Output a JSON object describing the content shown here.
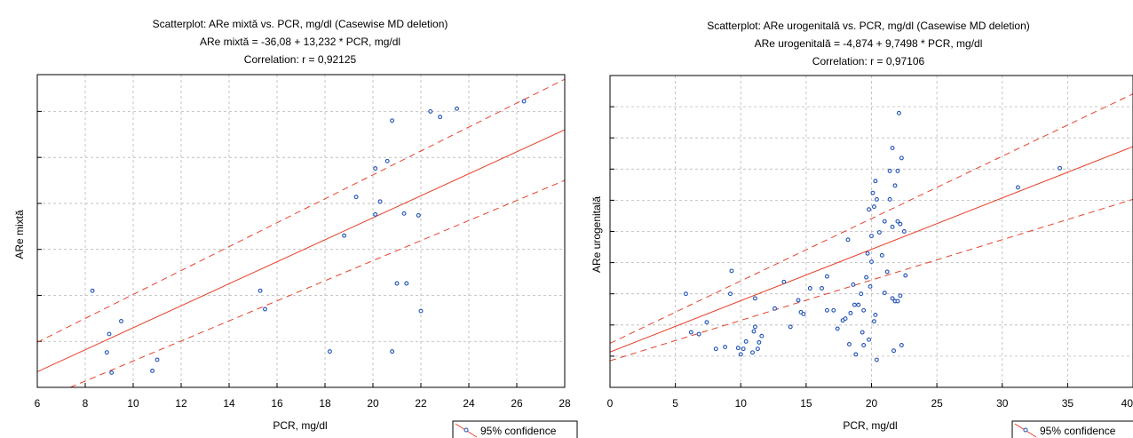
{
  "colors": {
    "point_stroke": "#1f4fb4",
    "fit_line": "#e8412c",
    "grid": "#b8b8b8",
    "frame": "#000000",
    "legend_marker": "#1f4fb4"
  },
  "chart_data": [
    {
      "type": "scatter",
      "title": "Scatterplot: ARe mixtă vs. PCR, mg/dl (Casewise MD deletion)",
      "subtitle": "ARe mixtă = -36,08 + 13,232 * PCR, mg/dl",
      "correlation": "Correlation: r = 0,92125",
      "xlabel": "PCR, mg/dl",
      "ylabel": "ARe mixtă",
      "xlim": [
        6,
        28
      ],
      "ylim": [
        0,
        34
      ],
      "x_ticks": [
        6,
        8,
        10,
        12,
        14,
        16,
        18,
        20,
        22,
        24,
        26,
        28
      ],
      "x_tick_labels": [
        "6",
        "8",
        "10",
        "12",
        "14",
        "16",
        "18",
        "20",
        "22",
        "24",
        "26",
        "28"
      ],
      "y_ticks": [
        5,
        10,
        15,
        20,
        25,
        30
      ],
      "grid": true,
      "legend": "95% confidence",
      "legend_position": "bottom-right",
      "fit": {
        "intercept": -36.08,
        "slope": 13.232
      },
      "band_upper": [
        [
          6,
          4.9
        ],
        [
          28,
          33.5
        ]
      ],
      "band_lower": [
        [
          6,
          -1.5
        ],
        [
          28,
          22.5
        ]
      ],
      "points": [
        [
          8.3,
          10.5
        ],
        [
          8.9,
          3.8
        ],
        [
          9.0,
          5.8
        ],
        [
          9.1,
          1.6
        ],
        [
          9.5,
          7.2
        ],
        [
          10.8,
          1.8
        ],
        [
          11.0,
          3.0
        ],
        [
          15.3,
          10.5
        ],
        [
          15.5,
          8.5
        ],
        [
          18.2,
          3.9
        ],
        [
          18.8,
          16.5
        ],
        [
          19.3,
          20.7
        ],
        [
          20.1,
          18.8
        ],
        [
          20.1,
          23.8
        ],
        [
          20.3,
          20.2
        ],
        [
          20.6,
          24.6
        ],
        [
          20.8,
          29.0
        ],
        [
          20.8,
          3.9
        ],
        [
          21.0,
          11.3
        ],
        [
          21.3,
          18.9
        ],
        [
          21.4,
          11.3
        ],
        [
          21.9,
          18.7
        ],
        [
          22.0,
          8.3
        ],
        [
          22.4,
          30.0
        ],
        [
          22.8,
          29.4
        ],
        [
          23.5,
          30.3
        ],
        [
          26.3,
          31.1
        ]
      ]
    },
    {
      "type": "scatter",
      "title": "Scatterplot: ARe urogenitală vs. PCR, mg/dl (Casewise MD deletion)",
      "subtitle": "ARe urogenitală = -4,874 + 9,7498 * PCR, mg/dl",
      "correlation": "Correlation: r = 0,97106",
      "xlabel": "PCR, mg/dl",
      "ylabel": "ARe urogenitală",
      "xlim": [
        0,
        40
      ],
      "ylim": [
        0,
        34
      ],
      "x_ticks": [
        0,
        5,
        10,
        15,
        20,
        25,
        30,
        35,
        40
      ],
      "x_tick_labels": [
        "0",
        "5",
        "10",
        "15",
        "20",
        "25",
        "30",
        "35",
        "40"
      ],
      "y_ticks": [
        3.4,
        6.8,
        10.2,
        13.6,
        17.0,
        20.4,
        23.8,
        27.2,
        30.6
      ],
      "grid": true,
      "legend": "95% confidence",
      "legend_position": "bottom-right",
      "fit": {
        "intercept": -4.874,
        "slope": 9.7498
      },
      "band_upper": [
        [
          0,
          4.8
        ],
        [
          40,
          32.0
        ]
      ],
      "band_lower": [
        [
          0,
          2.9
        ],
        [
          40,
          20.5
        ]
      ],
      "points": [
        [
          5.8,
          10.2
        ],
        [
          6.2,
          6.0
        ],
        [
          6.8,
          5.8
        ],
        [
          7.4,
          7.1
        ],
        [
          8.1,
          4.2
        ],
        [
          8.8,
          4.4
        ],
        [
          9.2,
          10.2
        ],
        [
          9.3,
          12.7
        ],
        [
          9.8,
          4.3
        ],
        [
          10.0,
          3.6
        ],
        [
          10.2,
          4.2
        ],
        [
          10.4,
          5.0
        ],
        [
          10.9,
          3.8
        ],
        [
          11.0,
          6.1
        ],
        [
          11.1,
          9.7
        ],
        [
          11.1,
          6.6
        ],
        [
          11.3,
          4.2
        ],
        [
          11.4,
          4.9
        ],
        [
          11.6,
          5.6
        ],
        [
          12.6,
          8.6
        ],
        [
          13.3,
          11.5
        ],
        [
          13.8,
          6.6
        ],
        [
          14.4,
          9.5
        ],
        [
          14.6,
          8.2
        ],
        [
          14.8,
          8.0
        ],
        [
          15.3,
          10.8
        ],
        [
          16.2,
          10.8
        ],
        [
          16.6,
          12.1
        ],
        [
          16.6,
          8.4
        ],
        [
          17.1,
          8.4
        ],
        [
          17.4,
          6.4
        ],
        [
          17.8,
          7.3
        ],
        [
          18.0,
          7.5
        ],
        [
          18.2,
          16.1
        ],
        [
          18.3,
          4.7
        ],
        [
          18.4,
          8.1
        ],
        [
          18.6,
          11.2
        ],
        [
          18.7,
          9.0
        ],
        [
          18.8,
          3.6
        ],
        [
          19.0,
          9.0
        ],
        [
          19.2,
          10.2
        ],
        [
          19.3,
          6.0
        ],
        [
          19.4,
          4.6
        ],
        [
          19.4,
          8.4
        ],
        [
          19.6,
          12.0
        ],
        [
          19.7,
          14.6
        ],
        [
          19.8,
          19.4
        ],
        [
          19.8,
          5.2
        ],
        [
          19.9,
          11.0
        ],
        [
          20.0,
          16.5
        ],
        [
          20.0,
          13.7
        ],
        [
          20.1,
          21.2
        ],
        [
          20.2,
          19.7
        ],
        [
          20.2,
          7.2
        ],
        [
          20.3,
          7.9
        ],
        [
          20.3,
          22.5
        ],
        [
          20.4,
          3.0
        ],
        [
          20.4,
          20.5
        ],
        [
          20.6,
          16.9
        ],
        [
          20.8,
          14.4
        ],
        [
          21.0,
          18.1
        ],
        [
          21.0,
          10.3
        ],
        [
          21.2,
          12.6
        ],
        [
          21.4,
          23.6
        ],
        [
          21.4,
          20.5
        ],
        [
          21.6,
          17.5
        ],
        [
          21.6,
          26.1
        ],
        [
          21.6,
          9.7
        ],
        [
          21.7,
          4.0
        ],
        [
          21.8,
          22.0
        ],
        [
          21.8,
          9.4
        ],
        [
          22.0,
          9.4
        ],
        [
          22.0,
          23.6
        ],
        [
          22.0,
          18.1
        ],
        [
          22.1,
          29.9
        ],
        [
          22.2,
          17.8
        ],
        [
          22.2,
          10.0
        ],
        [
          22.3,
          4.6
        ],
        [
          22.3,
          25.0
        ],
        [
          22.5,
          17.0
        ],
        [
          22.6,
          12.2
        ],
        [
          31.2,
          21.8
        ],
        [
          34.4,
          23.9
        ]
      ]
    }
  ]
}
